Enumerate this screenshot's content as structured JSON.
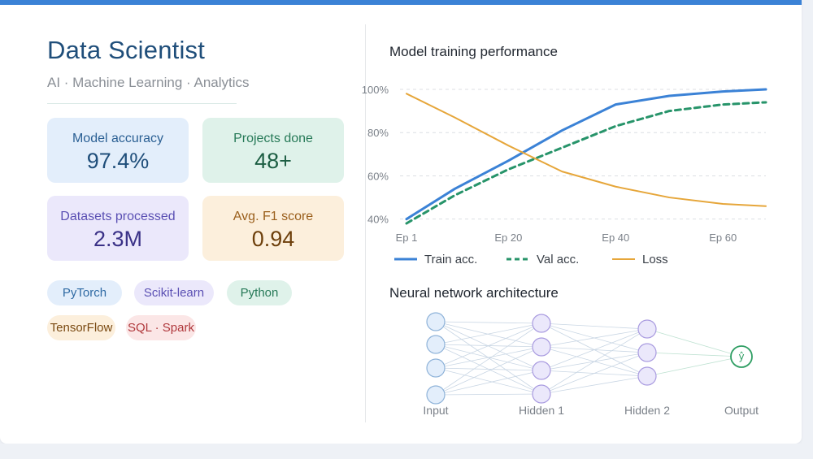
{
  "profile": {
    "title": "Data Scientist",
    "subtitle": "AI · Machine Learning · Analytics"
  },
  "stats": [
    {
      "label": "Model accuracy",
      "value": "97.4%"
    },
    {
      "label": "Projects done",
      "value": "48+"
    },
    {
      "label": "Datasets processed",
      "value": "2.3M"
    },
    {
      "label": "Avg. F1 score",
      "value": "0.94"
    }
  ],
  "tags": [
    "PyTorch",
    "Scikit-learn",
    "Python",
    "TensorFlow",
    "SQL · Spark"
  ],
  "colors": {
    "accent": "#3b82d6",
    "train": "#3b82d6",
    "val": "#27946a",
    "loss": "#e6a63a",
    "node": "#e3eefb",
    "node_stroke": "#8fb3d9",
    "hidden_node": "#ebe8fb",
    "hidden_stroke": "#a99be0",
    "output_stroke": "#2f9e63"
  },
  "chart_data": {
    "type": "line",
    "title": "Model training performance",
    "x": [
      1,
      10,
      20,
      30,
      40,
      50,
      60,
      68
    ],
    "xticks": [
      "Ep 1",
      "Ep 20",
      "Ep 40",
      "Ep 60"
    ],
    "xtick_values": [
      1,
      20,
      40,
      60
    ],
    "ylim": [
      38,
      100
    ],
    "yticks": [
      "40%",
      "60%",
      "80%",
      "100%"
    ],
    "ytick_values": [
      40,
      60,
      80,
      100
    ],
    "grid": true,
    "legend": "bottom",
    "series": [
      {
        "name": "Train acc.",
        "style": "solid",
        "values": [
          40,
          54,
          67,
          81,
          93,
          97,
          99,
          100
        ]
      },
      {
        "name": "Val acc.",
        "style": "dashed",
        "values": [
          38,
          51,
          63,
          73,
          83,
          90,
          93,
          94
        ]
      },
      {
        "name": "Loss",
        "style": "solid",
        "values": [
          98,
          87,
          74,
          62,
          55,
          50,
          47,
          46
        ]
      }
    ]
  },
  "network": {
    "title": "Neural network architecture",
    "layers": [
      {
        "label": "Input",
        "nodes": 4
      },
      {
        "label": "Hidden 1",
        "nodes": 4
      },
      {
        "label": "Hidden 2",
        "nodes": 3
      },
      {
        "label": "Output",
        "nodes": 1,
        "node_text": "ŷ"
      }
    ]
  }
}
